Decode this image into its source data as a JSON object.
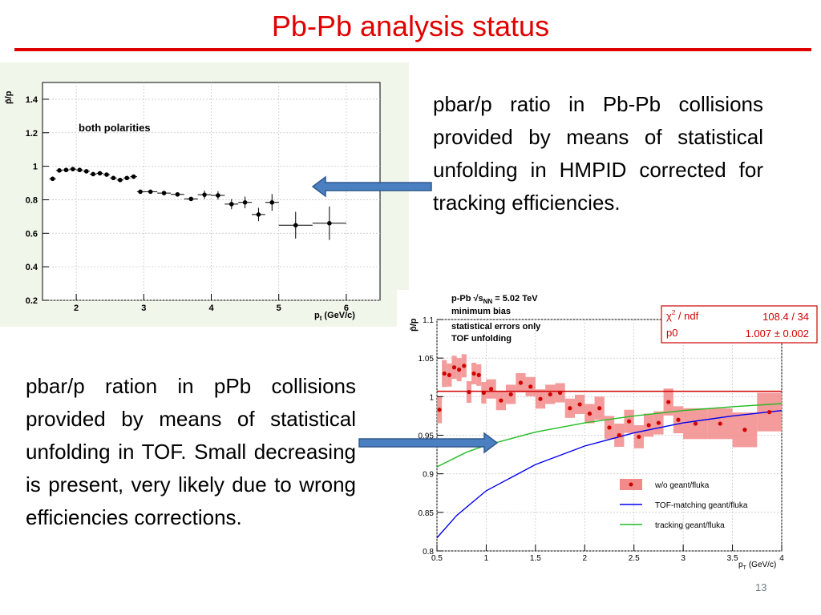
{
  "slide": {
    "title": "Pb-Pb analysis status",
    "page_number": "13",
    "accent_color": "#e00000",
    "arrow_color": "#4a7fc1"
  },
  "text_blocks": {
    "pbpb_description": "pbar/p ratio in Pb-Pb collisions provided by means of statistical unfolding in HMPID corrected for tracking efficiencies.",
    "ppb_description": "pbar/p ration in pPb collisions provided by means of statistical unfolding in TOF. Small decreasing is present, very likely due to wrong efficiencies corrections."
  },
  "chart_data": [
    {
      "type": "scatter",
      "annotation": "both polarities",
      "xlabel_main": "p",
      "xlabel_sub": "t",
      "xlabel_unit": "(GeV/c)",
      "ylabel": "p̄/p",
      "xlim": [
        1.5,
        6.5
      ],
      "ylim": [
        0.2,
        1.5
      ],
      "x_ticks": [
        "2",
        "3",
        "4",
        "5",
        "6"
      ],
      "y_ticks": [
        "0.2",
        "0.4",
        "0.6",
        "0.8",
        "1",
        "1.2",
        "1.4"
      ],
      "grid": true,
      "points": [
        {
          "x": 1.65,
          "y": 0.925,
          "xerr": 0.05,
          "yerr": 0.012
        },
        {
          "x": 1.75,
          "y": 0.975,
          "xerr": 0.05,
          "yerr": 0.012
        },
        {
          "x": 1.85,
          "y": 0.978,
          "xerr": 0.05,
          "yerr": 0.012
        },
        {
          "x": 1.95,
          "y": 0.983,
          "xerr": 0.05,
          "yerr": 0.012
        },
        {
          "x": 2.05,
          "y": 0.978,
          "xerr": 0.05,
          "yerr": 0.012
        },
        {
          "x": 2.15,
          "y": 0.97,
          "xerr": 0.05,
          "yerr": 0.012
        },
        {
          "x": 2.25,
          "y": 0.953,
          "xerr": 0.05,
          "yerr": 0.012
        },
        {
          "x": 2.35,
          "y": 0.958,
          "xerr": 0.05,
          "yerr": 0.012
        },
        {
          "x": 2.45,
          "y": 0.95,
          "xerr": 0.05,
          "yerr": 0.012
        },
        {
          "x": 2.55,
          "y": 0.93,
          "xerr": 0.05,
          "yerr": 0.012
        },
        {
          "x": 2.65,
          "y": 0.918,
          "xerr": 0.05,
          "yerr": 0.012
        },
        {
          "x": 2.75,
          "y": 0.93,
          "xerr": 0.05,
          "yerr": 0.012
        },
        {
          "x": 2.85,
          "y": 0.938,
          "xerr": 0.05,
          "yerr": 0.012
        },
        {
          "x": 2.95,
          "y": 0.848,
          "xerr": 0.05,
          "yerr": 0.012
        },
        {
          "x": 3.1,
          "y": 0.848,
          "xerr": 0.1,
          "yerr": 0.012
        },
        {
          "x": 3.3,
          "y": 0.84,
          "xerr": 0.1,
          "yerr": 0.012
        },
        {
          "x": 3.5,
          "y": 0.832,
          "xerr": 0.1,
          "yerr": 0.012
        },
        {
          "x": 3.7,
          "y": 0.805,
          "xerr": 0.1,
          "yerr": 0.012
        },
        {
          "x": 3.9,
          "y": 0.83,
          "xerr": 0.1,
          "yerr": 0.025
        },
        {
          "x": 4.1,
          "y": 0.826,
          "xerr": 0.1,
          "yerr": 0.025
        },
        {
          "x": 4.3,
          "y": 0.774,
          "xerr": 0.1,
          "yerr": 0.03
        },
        {
          "x": 4.5,
          "y": 0.784,
          "xerr": 0.1,
          "yerr": 0.035
        },
        {
          "x": 4.7,
          "y": 0.712,
          "xerr": 0.1,
          "yerr": 0.04
        },
        {
          "x": 4.9,
          "y": 0.784,
          "xerr": 0.1,
          "yerr": 0.05
        },
        {
          "x": 5.25,
          "y": 0.648,
          "xerr": 0.25,
          "yerr": 0.08
        },
        {
          "x": 5.75,
          "y": 0.66,
          "xerr": 0.25,
          "yerr": 0.1
        }
      ]
    },
    {
      "type": "scatter",
      "title_lines": [
        "p-Pb √s_NN = 5.02 TeV",
        "minimum bias",
        "statistical errors only",
        "TOF unfolding"
      ],
      "header_prefix": "p-Pb ",
      "header_sqrt": "√s",
      "header_sub": "NN",
      "header_suffix": " = 5.02 TeV",
      "line2": "minimum bias",
      "line3": "statistical errors only",
      "line4": "TOF unfolding",
      "xlabel_main": "p",
      "xlabel_sub": "T",
      "xlabel_unit": "(GeV/c)",
      "ylabel": "p̄/p",
      "xlim": [
        0.5,
        4
      ],
      "ylim": [
        0.8,
        1.1
      ],
      "x_ticks": [
        "0.5",
        "1",
        "1.5",
        "2",
        "2.5",
        "3",
        "3.5",
        "4"
      ],
      "y_ticks": [
        "0.8",
        "0.85",
        "0.9",
        "0.95",
        "1",
        "1.05",
        "1.1"
      ],
      "grid": true,
      "fit_box": {
        "chi2_label": "χ",
        "chi2_sup": "2",
        "chi2_rest": " / ndf",
        "chi2_value": "108.4 / 34",
        "p0_label": "p0",
        "p0_value": "1.007 ± 0.002",
        "fit_constant": 1.007
      },
      "series": [
        {
          "name": "w/o geant/fluka",
          "color": "#d00000",
          "points": [
            {
              "x": 0.525,
              "y": 0.983,
              "bw": 0.05,
              "bh": 0.035
            },
            {
              "x": 0.575,
              "y": 1.03,
              "bw": 0.05,
              "bh": 0.035
            },
            {
              "x": 0.625,
              "y": 1.028,
              "bw": 0.05,
              "bh": 0.03
            },
            {
              "x": 0.675,
              "y": 1.038,
              "bw": 0.05,
              "bh": 0.03
            },
            {
              "x": 0.725,
              "y": 1.035,
              "bw": 0.05,
              "bh": 0.03
            },
            {
              "x": 0.775,
              "y": 1.04,
              "bw": 0.05,
              "bh": 0.03
            },
            {
              "x": 0.825,
              "y": 1.006,
              "bw": 0.05,
              "bh": 0.028
            },
            {
              "x": 0.875,
              "y": 1.03,
              "bw": 0.05,
              "bh": 0.028
            },
            {
              "x": 0.925,
              "y": 1.028,
              "bw": 0.05,
              "bh": 0.028
            },
            {
              "x": 0.975,
              "y": 1.005,
              "bw": 0.05,
              "bh": 0.028
            },
            {
              "x": 1.05,
              "y": 1.01,
              "bw": 0.1,
              "bh": 0.025
            },
            {
              "x": 1.15,
              "y": 0.995,
              "bw": 0.1,
              "bh": 0.025
            },
            {
              "x": 1.25,
              "y": 1.003,
              "bw": 0.1,
              "bh": 0.025
            },
            {
              "x": 1.35,
              "y": 1.018,
              "bw": 0.1,
              "bh": 0.025
            },
            {
              "x": 1.45,
              "y": 1.013,
              "bw": 0.1,
              "bh": 0.025
            },
            {
              "x": 1.55,
              "y": 0.997,
              "bw": 0.1,
              "bh": 0.025
            },
            {
              "x": 1.65,
              "y": 1.003,
              "bw": 0.1,
              "bh": 0.025
            },
            {
              "x": 1.75,
              "y": 1.005,
              "bw": 0.1,
              "bh": 0.025
            },
            {
              "x": 1.85,
              "y": 0.985,
              "bw": 0.1,
              "bh": 0.025
            },
            {
              "x": 1.95,
              "y": 0.99,
              "bw": 0.1,
              "bh": 0.025
            },
            {
              "x": 2.05,
              "y": 0.978,
              "bw": 0.1,
              "bh": 0.025
            },
            {
              "x": 2.15,
              "y": 0.985,
              "bw": 0.1,
              "bh": 0.03
            },
            {
              "x": 2.25,
              "y": 0.96,
              "bw": 0.1,
              "bh": 0.03
            },
            {
              "x": 2.35,
              "y": 0.95,
              "bw": 0.1,
              "bh": 0.03
            },
            {
              "x": 2.45,
              "y": 0.968,
              "bw": 0.1,
              "bh": 0.03
            },
            {
              "x": 2.55,
              "y": 0.948,
              "bw": 0.1,
              "bh": 0.03
            },
            {
              "x": 2.65,
              "y": 0.963,
              "bw": 0.1,
              "bh": 0.03
            },
            {
              "x": 2.75,
              "y": 0.966,
              "bw": 0.1,
              "bh": 0.03
            },
            {
              "x": 2.85,
              "y": 0.993,
              "bw": 0.1,
              "bh": 0.035
            },
            {
              "x": 2.95,
              "y": 0.97,
              "bw": 0.1,
              "bh": 0.035
            },
            {
              "x": 3.125,
              "y": 0.965,
              "bw": 0.25,
              "bh": 0.04
            },
            {
              "x": 3.375,
              "y": 0.965,
              "bw": 0.25,
              "bh": 0.04
            },
            {
              "x": 3.625,
              "y": 0.957,
              "bw": 0.25,
              "bh": 0.045
            },
            {
              "x": 3.875,
              "y": 0.98,
              "bw": 0.25,
              "bh": 0.05
            }
          ]
        },
        {
          "name": "TOF-matching geant/fluka",
          "color": "#0000ee",
          "curve": [
            [
              0.5,
              0.817
            ],
            [
              0.7,
              0.846
            ],
            [
              1.0,
              0.878
            ],
            [
              1.5,
              0.912
            ],
            [
              2.0,
              0.936
            ],
            [
              2.5,
              0.953
            ],
            [
              3.0,
              0.966
            ],
            [
              3.5,
              0.975
            ],
            [
              4.0,
              0.982
            ]
          ]
        },
        {
          "name": "tracking geant/fluka",
          "color": "#22bb22",
          "curve": [
            [
              0.5,
              0.909
            ],
            [
              0.8,
              0.928
            ],
            [
              1.0,
              0.937
            ],
            [
              1.5,
              0.954
            ],
            [
              2.0,
              0.966
            ],
            [
              2.5,
              0.975
            ],
            [
              3.0,
              0.982
            ],
            [
              3.5,
              0.987
            ],
            [
              4.0,
              0.991
            ]
          ]
        }
      ]
    }
  ]
}
